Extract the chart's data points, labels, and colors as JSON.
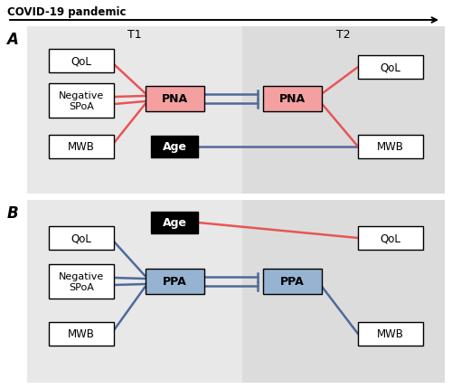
{
  "fig_width": 5.0,
  "fig_height": 4.31,
  "dpi": 100,
  "bg_color": "#ffffff",
  "t1_bg": "#e8e8e8",
  "t2_bg": "#dcdcdc",
  "red_color": "#e85555",
  "blue_color": "#4f6a9a",
  "box_red_fill": "#f4a0a0",
  "box_blue_fill": "#96b4d2",
  "box_white_fill": "#ffffff",
  "box_black_fill": "#000000",
  "title_text": "COVID-19 pandemic",
  "t1_label": "T1",
  "t2_label": "T2",
  "panel_a_label": "A",
  "panel_b_label": "B"
}
